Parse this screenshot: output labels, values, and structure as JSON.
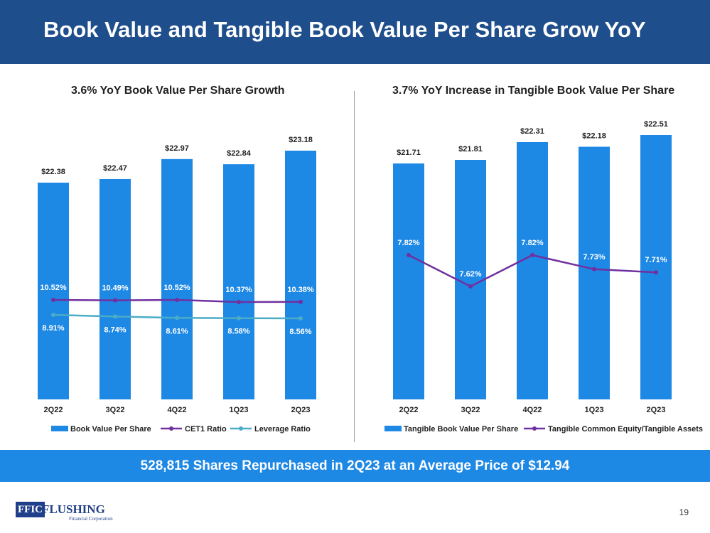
{
  "header": {
    "title": "Book Value and Tangible Book Value Per Share Grow YoY"
  },
  "colors": {
    "header_bg": "#1f4e8c",
    "bar": "#1e88e5",
    "cet1": "#7030a0",
    "leverage": "#4bacc6",
    "tce": "#7030a0",
    "banner": "#1e88e5"
  },
  "chart_data": [
    {
      "type": "bar",
      "title": "3.6% YoY Book Value Per Share Growth",
      "categories": [
        "2Q22",
        "3Q22",
        "4Q22",
        "1Q23",
        "2Q23"
      ],
      "series": [
        {
          "name": "Book Value Per Share",
          "type": "bar",
          "values": [
            22.38,
            22.47,
            22.97,
            22.84,
            23.18
          ],
          "labels": [
            "$22.38",
            "$22.47",
            "$22.97",
            "$22.84",
            "$23.18"
          ]
        },
        {
          "name": "CET1 Ratio",
          "type": "line",
          "values": [
            10.52,
            10.49,
            10.52,
            10.37,
            10.38
          ],
          "labels": [
            "10.52%",
            "10.49%",
            "10.52%",
            "10.37%",
            "10.38%"
          ]
        },
        {
          "name": "Leverage Ratio",
          "type": "line",
          "values": [
            8.91,
            8.74,
            8.61,
            8.58,
            8.56
          ],
          "labels": [
            "8.91%",
            "8.74%",
            "8.61%",
            "8.58%",
            "8.56%"
          ]
        }
      ],
      "legend": "bottom"
    },
    {
      "type": "bar",
      "title": "3.7% YoY Increase in Tangible Book Value Per Share",
      "categories": [
        "2Q22",
        "3Q22",
        "4Q22",
        "1Q23",
        "2Q23"
      ],
      "series": [
        {
          "name": "Tangible Book Value Per Share",
          "type": "bar",
          "values": [
            21.71,
            21.81,
            22.31,
            22.18,
            22.51
          ],
          "labels": [
            "$21.71",
            "$21.81",
            "$22.31",
            "$22.18",
            "$22.51"
          ]
        },
        {
          "name": "Tangible Common Equity/Tangible Assets",
          "type": "line",
          "values": [
            7.82,
            7.62,
            7.82,
            7.73,
            7.71
          ],
          "labels": [
            "7.82%",
            "7.62%",
            "7.82%",
            "7.73%",
            "7.71%"
          ]
        }
      ],
      "legend": "bottom"
    }
  ],
  "banner": {
    "text": "528,815 Shares Repurchased in 2Q23 at an Average Price of $12.94"
  },
  "footer": {
    "logo_box": "FFIC",
    "logo_word": "FLUSHING",
    "logo_sub": "Financial Corporation",
    "page_number": "19"
  }
}
